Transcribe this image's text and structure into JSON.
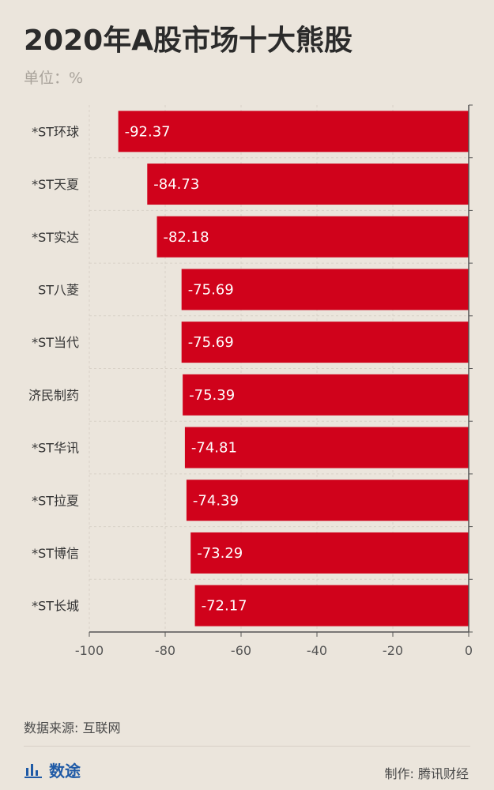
{
  "header": {
    "title": "2020年A股市场十大熊股",
    "unit": "单位：%"
  },
  "footer": {
    "source": "数据来源: 互联网",
    "brand": "数途",
    "credit": "制作: 腾讯财经"
  },
  "colors": {
    "bar": "#d0021b",
    "brand": "#1f5aa6",
    "background": "#ebe5dc"
  },
  "icons": [
    "bar-chart-icon"
  ],
  "chart_data": {
    "type": "bar",
    "orientation": "horizontal",
    "title": "2020年A股市场十大熊股",
    "categories": [
      "*ST环球",
      "*ST天夏",
      "*ST实达",
      "ST八菱",
      "*ST当代",
      "济民制药",
      "*ST华讯",
      "*ST拉夏",
      "*ST博信",
      "*ST长城"
    ],
    "values": [
      -92.37,
      -84.73,
      -82.18,
      -75.69,
      -75.69,
      -75.39,
      -74.81,
      -74.39,
      -73.29,
      -72.17
    ],
    "value_labels": [
      "-92.37",
      "-84.73",
      "-82.18",
      "-75.69",
      "-75.69",
      "-75.39",
      "-74.81",
      "-74.39",
      "-73.29",
      "-72.17"
    ],
    "xlim": [
      -100,
      0
    ],
    "xticks": [
      -100,
      -80,
      -60,
      -40,
      -20,
      0
    ],
    "xtick_labels": [
      "-100",
      "-80",
      "-60",
      "-40",
      "-20",
      "0"
    ],
    "grid": true,
    "legend": "none"
  }
}
